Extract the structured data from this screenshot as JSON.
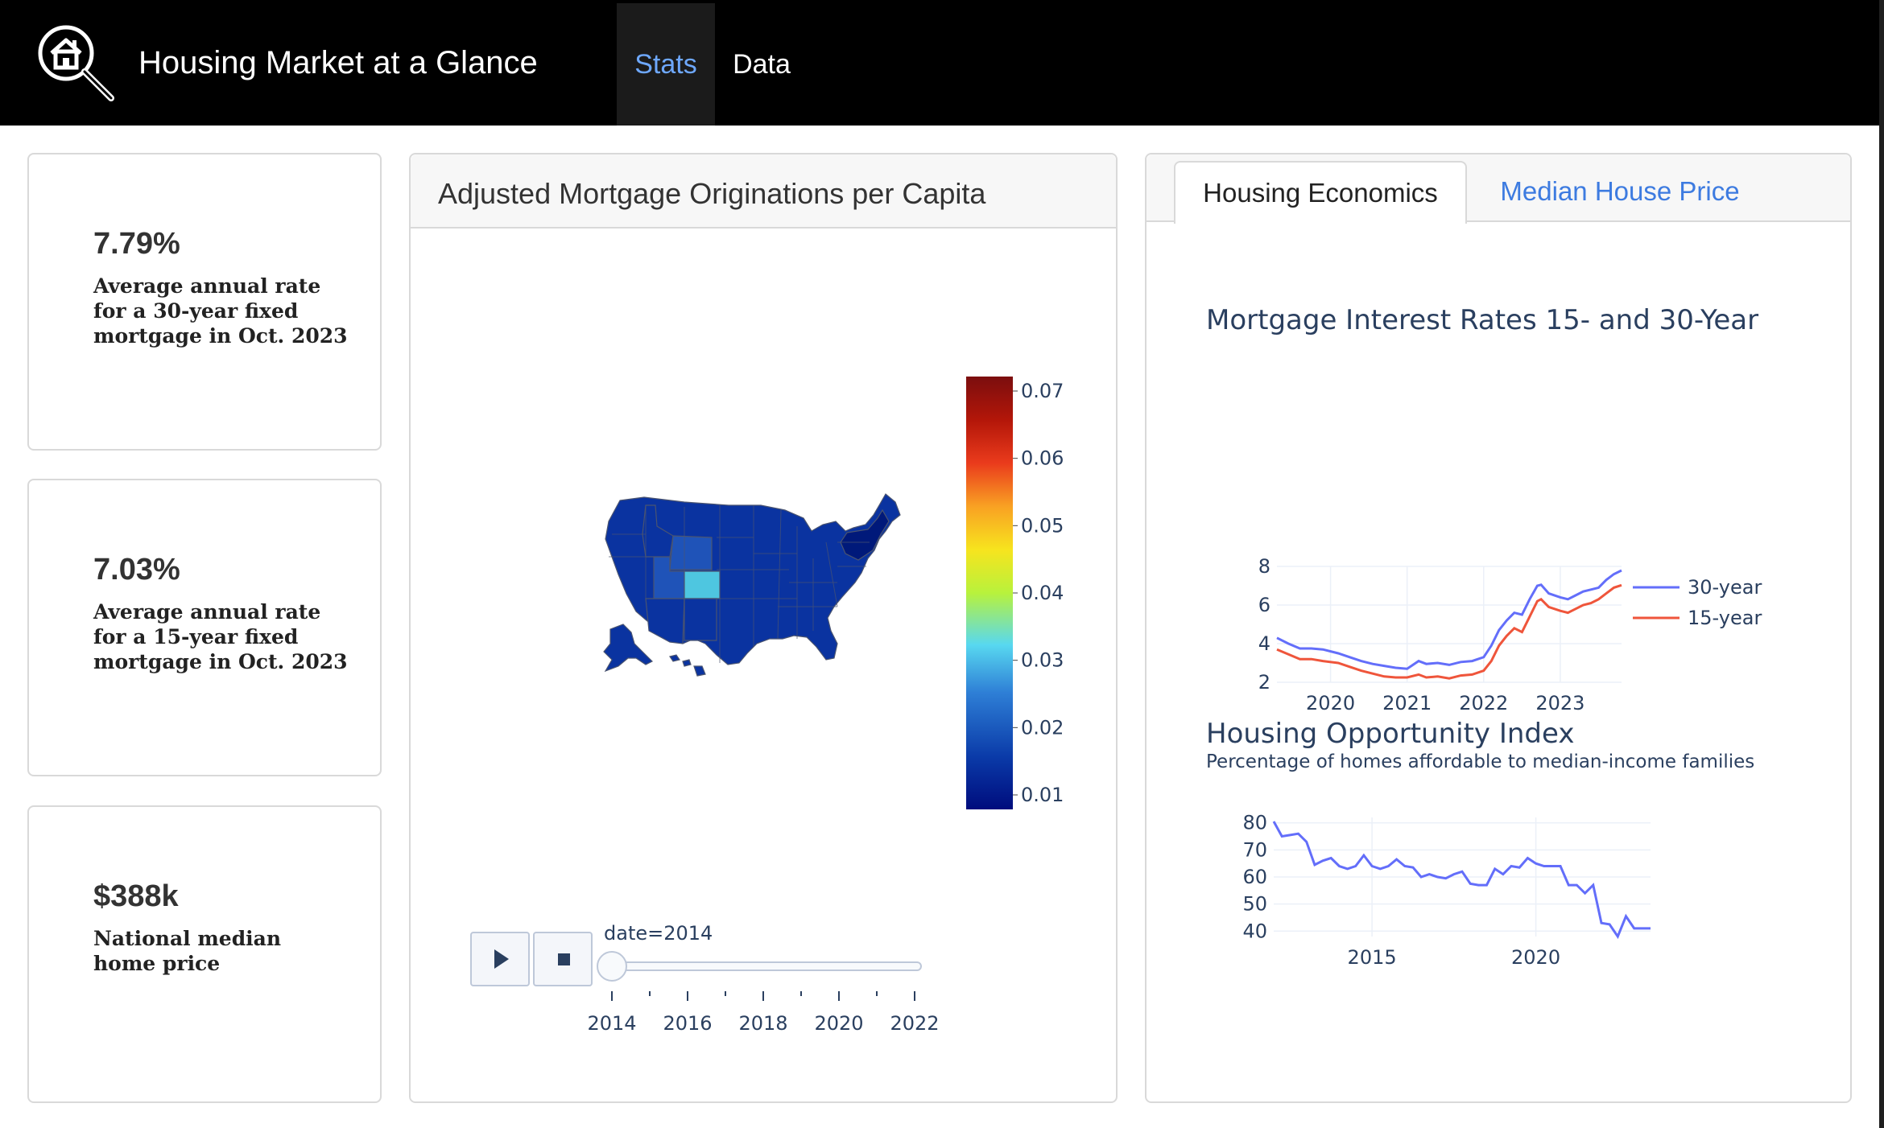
{
  "app": {
    "title": "Housing Market at a Glance",
    "nav": [
      {
        "label": "Stats",
        "active": true
      },
      {
        "label": "Data",
        "active": false
      }
    ]
  },
  "stats": [
    {
      "value": "7.79%",
      "desc": [
        "Average annual rate",
        "for a 30-year fixed",
        "mortgage in Oct. 2023"
      ]
    },
    {
      "value": "7.03%",
      "desc": [
        "Average annual rate",
        "for a 15-year fixed",
        "mortgage in Oct. 2023"
      ]
    },
    {
      "value": "$388k",
      "desc": [
        "National median",
        "home price"
      ]
    }
  ],
  "map_panel": {
    "title": "Adjusted Mortgage Originations per Capita",
    "slider_label": "date=2014",
    "slider_ticks": [
      "2014",
      "2016",
      "2018",
      "2020",
      "2022"
    ],
    "slider_value": 2014,
    "colorbar_ticks": [
      "0.07",
      "0.06",
      "0.05",
      "0.04",
      "0.03",
      "0.02",
      "0.01"
    ],
    "colorscale": [
      "#000c7d",
      "#0a3aa8",
      "#2e7fd6",
      "#58d8f0",
      "#b8f23c",
      "#f7e41e",
      "#f9a123",
      "#ea3b1c",
      "#b31609",
      "#7b0e0e"
    ],
    "highlight_colors": {
      "base": "#0a33a0",
      "light": "#1f53b8",
      "colorado": "#4ec6e0",
      "dark": "#00197a"
    }
  },
  "econ_panel": {
    "tabs": [
      {
        "label": "Housing Economics",
        "active": true
      },
      {
        "label": "Median House Price",
        "active": false
      }
    ]
  },
  "chart_data": [
    {
      "type": "line",
      "title": "Mortgage Interest Rates 15- and 30-Year",
      "xlabel": "",
      "ylabel": "",
      "x_ticks": [
        "2020",
        "2021",
        "2022",
        "2023"
      ],
      "y_ticks": [
        "2",
        "4",
        "6",
        "8"
      ],
      "xlim": [
        2019.3,
        2023.8
      ],
      "ylim": [
        2,
        8
      ],
      "legend_position": "right",
      "grid": true,
      "x": [
        2019.3,
        2019.45,
        2019.6,
        2019.75,
        2019.9,
        2020.1,
        2020.25,
        2020.4,
        2020.55,
        2020.7,
        2020.85,
        2021.0,
        2021.15,
        2021.25,
        2021.4,
        2021.55,
        2021.7,
        2021.85,
        2022.0,
        2022.1,
        2022.2,
        2022.3,
        2022.4,
        2022.5,
        2022.6,
        2022.7,
        2022.75,
        2022.85,
        2023.0,
        2023.1,
        2023.2,
        2023.3,
        2023.4,
        2023.5,
        2023.6,
        2023.7,
        2023.8
      ],
      "series": [
        {
          "name": "30-year",
          "color": "#636efa",
          "values": [
            4.3,
            4.0,
            3.75,
            3.75,
            3.7,
            3.5,
            3.3,
            3.1,
            2.95,
            2.85,
            2.75,
            2.7,
            3.1,
            2.95,
            3.0,
            2.9,
            3.05,
            3.1,
            3.3,
            3.9,
            4.7,
            5.2,
            5.6,
            5.5,
            6.3,
            7.0,
            7.05,
            6.6,
            6.4,
            6.3,
            6.5,
            6.7,
            6.8,
            6.9,
            7.3,
            7.6,
            7.79
          ]
        },
        {
          "name": "15-year",
          "color": "#ef553b",
          "values": [
            3.7,
            3.45,
            3.2,
            3.2,
            3.1,
            3.0,
            2.8,
            2.6,
            2.45,
            2.3,
            2.25,
            2.25,
            2.4,
            2.25,
            2.3,
            2.2,
            2.35,
            2.4,
            2.6,
            3.1,
            3.9,
            4.4,
            4.8,
            4.6,
            5.4,
            6.2,
            6.3,
            5.9,
            5.7,
            5.6,
            5.8,
            6.0,
            6.1,
            6.3,
            6.6,
            6.9,
            7.03
          ]
        }
      ]
    },
    {
      "type": "line",
      "title": "Housing Opportunity Index",
      "subtitle": "Percentage of homes affordable to median-income families",
      "xlabel": "",
      "ylabel": "",
      "x_ticks": [
        "2015",
        "2020"
      ],
      "y_ticks": [
        "40",
        "50",
        "60",
        "70",
        "80"
      ],
      "xlim": [
        2012.0,
        2023.5
      ],
      "ylim": [
        38,
        82
      ],
      "grid": true,
      "x": [
        2012.0,
        2012.25,
        2012.5,
        2012.75,
        2013.0,
        2013.25,
        2013.5,
        2013.75,
        2014.0,
        2014.25,
        2014.5,
        2014.75,
        2015.0,
        2015.25,
        2015.5,
        2015.75,
        2016.0,
        2016.25,
        2016.5,
        2016.75,
        2017.0,
        2017.25,
        2017.5,
        2017.75,
        2018.0,
        2018.25,
        2018.5,
        2018.75,
        2019.0,
        2019.25,
        2019.5,
        2019.75,
        2020.0,
        2020.25,
        2020.5,
        2020.75,
        2021.0,
        2021.25,
        2021.5,
        2021.75,
        2022.0,
        2022.25,
        2022.5,
        2022.75,
        2023.0,
        2023.25,
        2023.5
      ],
      "series": [
        {
          "name": "",
          "color": "#636efa",
          "values": [
            80.5,
            75,
            75.5,
            76,
            73,
            64.5,
            66,
            67,
            64,
            63,
            64,
            68,
            64,
            63,
            64,
            66.5,
            64,
            63.5,
            60,
            61,
            60,
            59.5,
            61,
            62,
            57.5,
            57,
            57,
            63,
            61,
            64,
            63.5,
            67,
            65,
            64,
            64,
            64,
            57,
            57,
            54,
            57,
            43,
            42.5,
            38,
            45.5,
            41,
            41,
            41
          ]
        }
      ]
    }
  ]
}
